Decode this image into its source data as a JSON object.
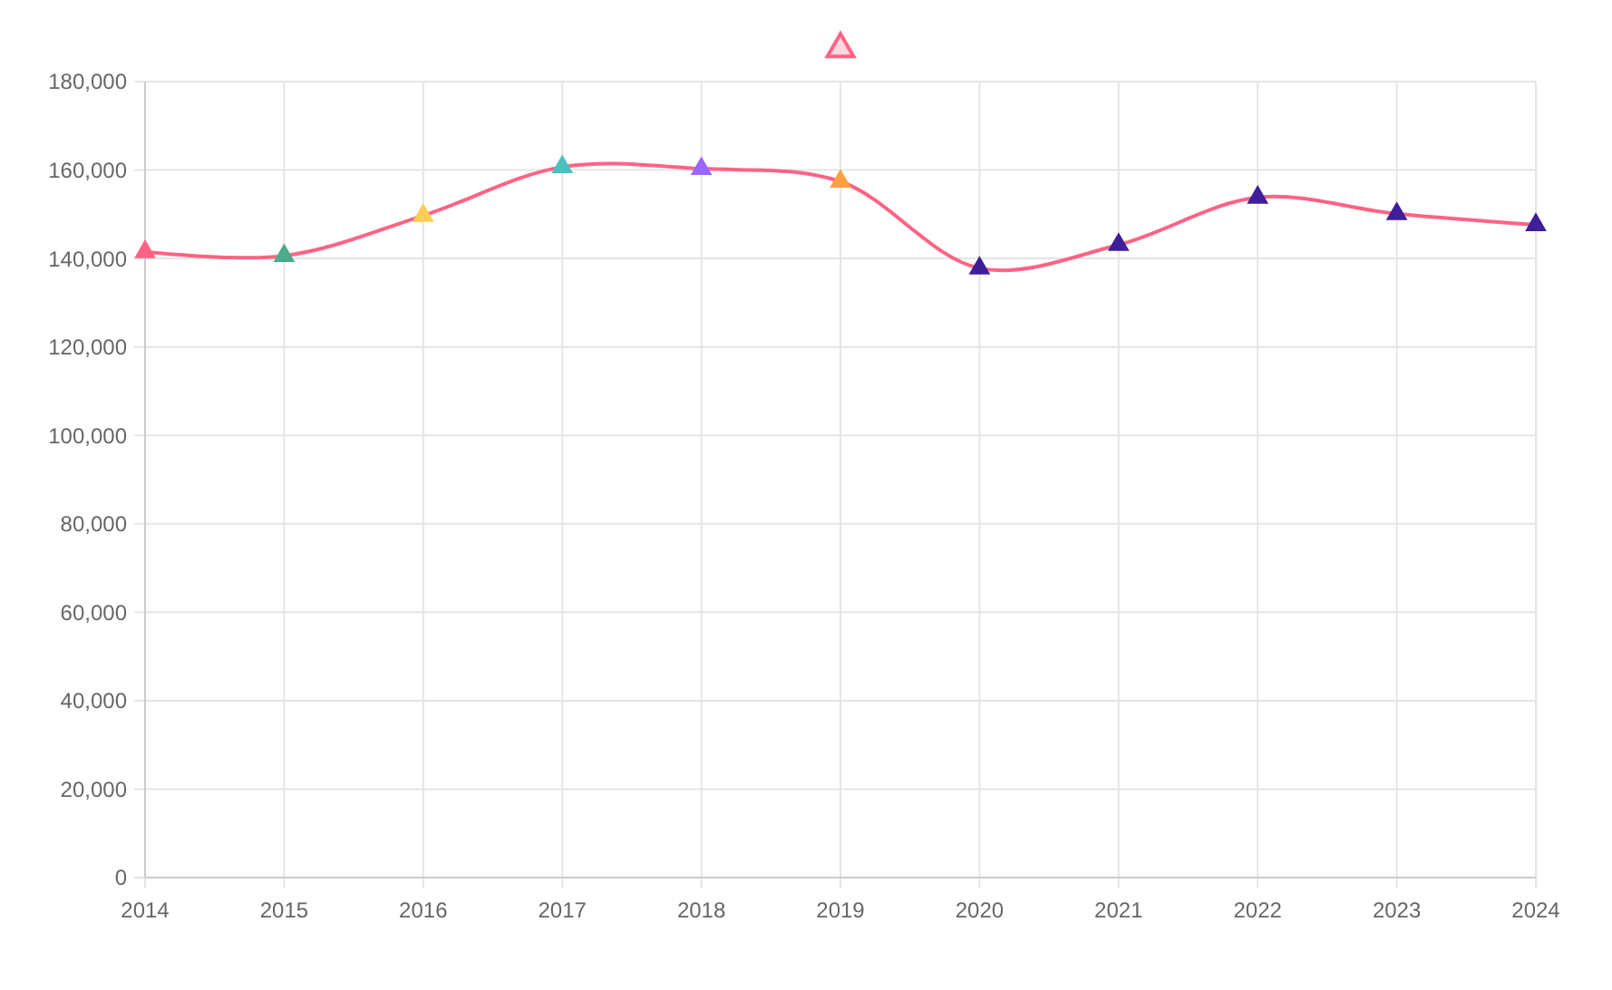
{
  "chart_data": {
    "type": "line",
    "x": [
      2014,
      2015,
      2016,
      2017,
      2018,
      2019,
      2020,
      2021,
      2022,
      2023,
      2024
    ],
    "series": [
      {
        "color": "#ff6384",
        "colors": [
          "#ff6384",
          "#4bab8a",
          "#ffcd56",
          "#4bc0c0",
          "#9966ff",
          "#ff9f40",
          "#3f1f99",
          "#3f1f99",
          "#3f1f99",
          "#3f1f99",
          "#3f1f99"
        ],
        "values": [
          141500,
          140600,
          149700,
          160700,
          160300,
          157400,
          137800,
          143100,
          153800,
          150100,
          147600
        ]
      }
    ],
    "xlim": [
      2014,
      2024
    ],
    "xticks": [
      2014,
      2015,
      2016,
      2017,
      2018,
      2019,
      2020,
      2021,
      2022,
      2023,
      2024
    ],
    "ylim": [
      0,
      180000
    ],
    "yticks": [
      {
        "value": 0,
        "label": "0"
      },
      {
        "value": 20000,
        "label": "20,000"
      },
      {
        "value": 40000,
        "label": "40,000"
      },
      {
        "value": 60000,
        "label": "60,000"
      },
      {
        "value": 80000,
        "label": "80,000"
      },
      {
        "value": 100000,
        "label": "100,000"
      },
      {
        "value": 120000,
        "label": "120,000"
      },
      {
        "value": 140000,
        "label": "140,000"
      },
      {
        "value": 160000,
        "label": "160,000"
      },
      {
        "value": 180000,
        "label": "180,000"
      }
    ],
    "grid": true,
    "marker": "triangle",
    "line_style": "solid"
  }
}
